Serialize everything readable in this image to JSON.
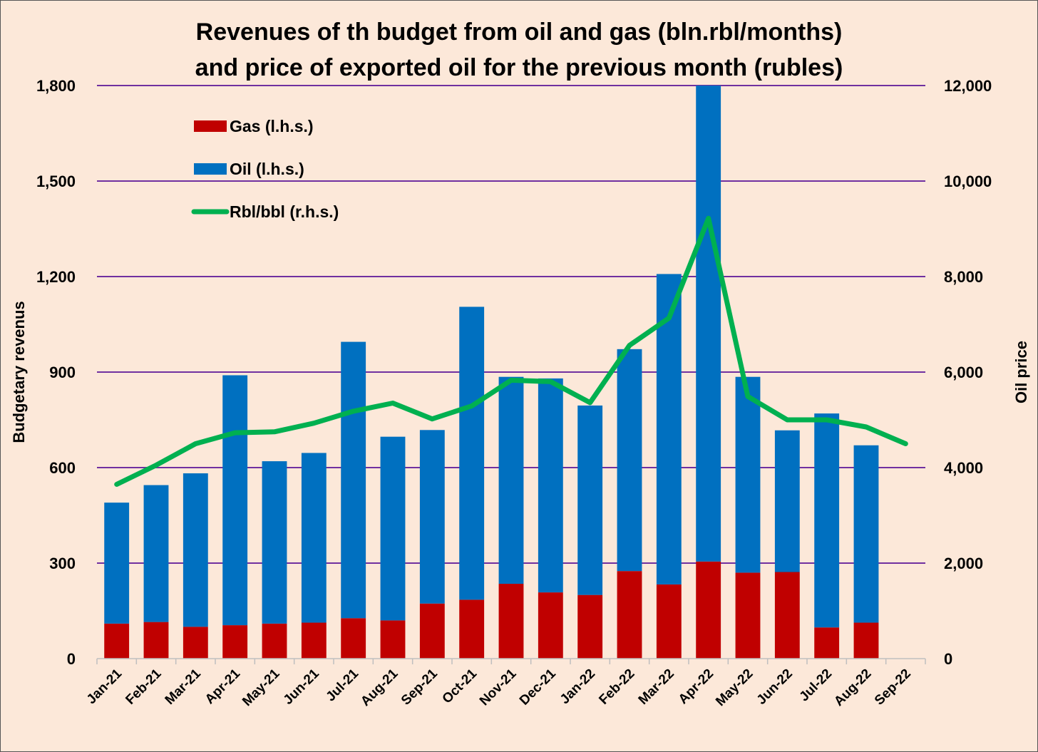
{
  "chart_data": {
    "type": "bar",
    "title": "Revenues of th budget from oil and gas (bln.rbl/months)",
    "subtitle": "and price of exported oil for the previous month (rubles)",
    "ylabel": "Budgetary revenus",
    "y2label": "Oil price",
    "ylim": [
      0,
      1800
    ],
    "y2lim": [
      0,
      12000
    ],
    "yticks": [
      "0",
      "300",
      "600",
      "900",
      "1,200",
      "1,500",
      "1,800"
    ],
    "y2ticks": [
      "0",
      "2,000",
      "4,000",
      "6,000",
      "8,000",
      "10,000",
      "12,000"
    ],
    "categories": [
      "Jan-21",
      "Feb-21",
      "Mar-21",
      "Apr-21",
      "May-21",
      "Jun-21",
      "Jul-21",
      "Aug-21",
      "Sep-21",
      "Oct-21",
      "Nov-21",
      "Dec-21",
      "Jan-22",
      "Feb-22",
      "Mar-22",
      "Apr-22",
      "May-22",
      "Jun-22",
      "Jul-22",
      "Aug-22",
      "Sep-22"
    ],
    "stacked": true,
    "grid": true,
    "legend_position": "top-left",
    "series": [
      {
        "name": "Gas (l.h.s.)",
        "kind": "bar",
        "axis": "left",
        "color": "#c00000",
        "values": [
          110,
          115,
          100,
          105,
          110,
          113,
          127,
          120,
          173,
          185,
          235,
          208,
          200,
          275,
          233,
          305,
          270,
          272,
          98,
          113,
          null
        ]
      },
      {
        "name": "Oil (l.h.s.)",
        "kind": "bar",
        "axis": "left",
        "color": "#0070c0",
        "values": [
          380,
          430,
          482,
          785,
          510,
          533,
          868,
          577,
          545,
          920,
          650,
          672,
          595,
          697,
          975,
          1495,
          615,
          445,
          672,
          557,
          null
        ]
      },
      {
        "name": "Rbl/bbl (r.h.s.)",
        "kind": "line",
        "axis": "right",
        "color": "#00b050",
        "values": [
          3650,
          4050,
          4500,
          4730,
          4750,
          4930,
          5180,
          5350,
          5020,
          5290,
          5830,
          5800,
          5360,
          6560,
          7130,
          9220,
          5490,
          5000,
          5000,
          4850,
          4500
        ]
      }
    ]
  },
  "colors": {
    "background": "#fce8d9",
    "gridline": "#7030a0",
    "gas": "#c00000",
    "oil": "#0070c0",
    "price": "#00b050"
  }
}
